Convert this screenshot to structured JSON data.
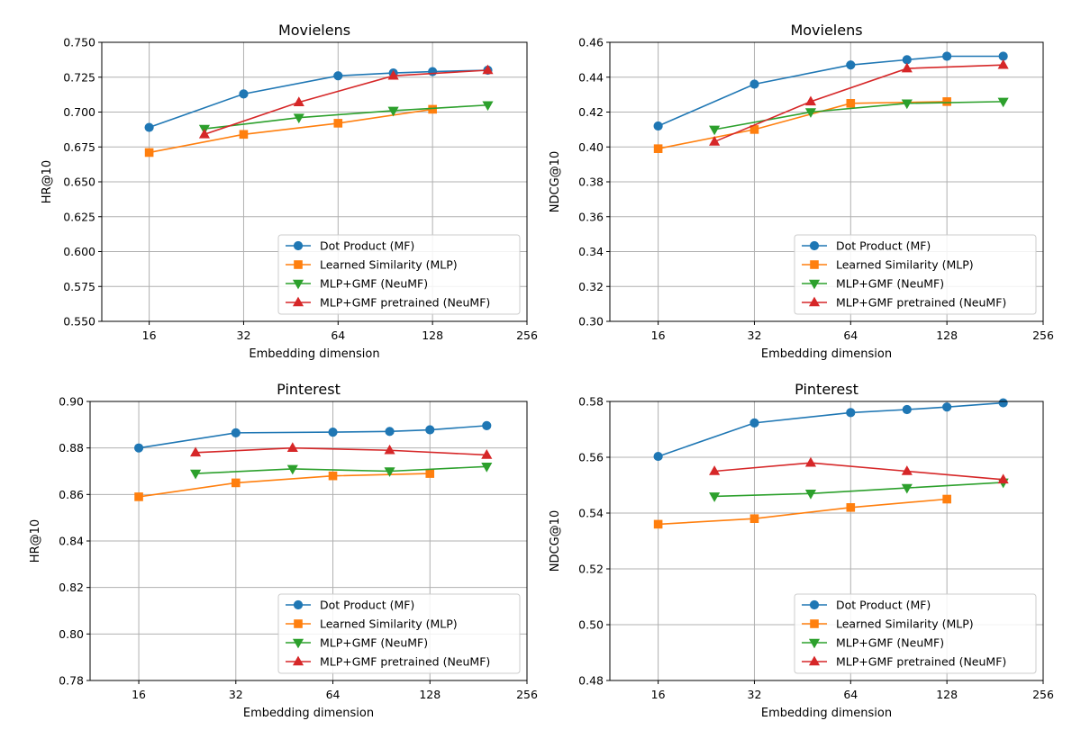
{
  "series_colors": [
    "#1f77b4",
    "#ff7f0e",
    "#2ca02c",
    "#d62728"
  ],
  "series_markers": [
    "circle",
    "square",
    "triangle-down",
    "triangle-up"
  ],
  "chart_data": [
    {
      "type": "line",
      "title": "Movielens",
      "xlabel": "Embedding dimension",
      "ylabel": "HR@10",
      "xscale": "log2",
      "xlim": [
        11.3,
        256
      ],
      "xticks": [
        16,
        32,
        64,
        128,
        256
      ],
      "xtick_labels": [
        "16",
        "32",
        "64",
        "128",
        "256"
      ],
      "ylim": [
        0.55,
        0.75
      ],
      "yticks": [
        0.55,
        0.575,
        0.6,
        0.625,
        0.65,
        0.675,
        0.7,
        0.725,
        0.75
      ],
      "ytick_labels": [
        "0.550",
        "0.575",
        "0.600",
        "0.625",
        "0.650",
        "0.675",
        "0.700",
        "0.725",
        "0.750"
      ],
      "grid": true,
      "legend_position": "lower-right",
      "series": [
        {
          "name": "Dot Product (MF)",
          "x": [
            16,
            32,
            64,
            96,
            128,
            192
          ],
          "y": [
            0.689,
            0.713,
            0.726,
            0.728,
            0.729,
            0.73
          ]
        },
        {
          "name": "Learned Similarity (MLP)",
          "x": [
            16,
            32,
            64,
            128
          ],
          "y": [
            0.671,
            0.684,
            0.692,
            0.702
          ]
        },
        {
          "name": "MLP+GMF (NeuMF)",
          "x": [
            24,
            48,
            96,
            192
          ],
          "y": [
            0.688,
            0.696,
            0.701,
            0.705
          ]
        },
        {
          "name": "MLP+GMF pretrained (NeuMF)",
          "x": [
            24,
            48,
            96,
            192
          ],
          "y": [
            0.684,
            0.707,
            0.726,
            0.73
          ]
        }
      ]
    },
    {
      "type": "line",
      "title": "Movielens",
      "xlabel": "Embedding dimension",
      "ylabel": "NDCG@10",
      "xscale": "log2",
      "xlim": [
        11.3,
        256
      ],
      "xticks": [
        16,
        32,
        64,
        128,
        256
      ],
      "xtick_labels": [
        "16",
        "32",
        "64",
        "128",
        "256"
      ],
      "ylim": [
        0.3,
        0.46
      ],
      "yticks": [
        0.3,
        0.32,
        0.34,
        0.36,
        0.38,
        0.4,
        0.42,
        0.44,
        0.46
      ],
      "ytick_labels": [
        "0.30",
        "0.32",
        "0.34",
        "0.36",
        "0.38",
        "0.40",
        "0.42",
        "0.44",
        "0.46"
      ],
      "grid": true,
      "legend_position": "lower-right",
      "series": [
        {
          "name": "Dot Product (MF)",
          "x": [
            16,
            32,
            64,
            96,
            128,
            192
          ],
          "y": [
            0.412,
            0.436,
            0.447,
            0.45,
            0.452,
            0.452
          ]
        },
        {
          "name": "Learned Similarity (MLP)",
          "x": [
            16,
            32,
            64,
            128
          ],
          "y": [
            0.399,
            0.41,
            0.425,
            0.426
          ]
        },
        {
          "name": "MLP+GMF (NeuMF)",
          "x": [
            24,
            48,
            96,
            192
          ],
          "y": [
            0.41,
            0.42,
            0.425,
            0.426
          ]
        },
        {
          "name": "MLP+GMF pretrained (NeuMF)",
          "x": [
            24,
            48,
            96,
            192
          ],
          "y": [
            0.403,
            0.426,
            0.445,
            0.447
          ]
        }
      ]
    },
    {
      "type": "line",
      "title": "Pinterest",
      "xlabel": "Embedding dimension",
      "ylabel": "HR@10",
      "xscale": "log2",
      "xlim": [
        11.3,
        256
      ],
      "xticks": [
        16,
        32,
        64,
        128,
        256
      ],
      "xtick_labels": [
        "16",
        "32",
        "64",
        "128",
        "256"
      ],
      "ylim": [
        0.78,
        0.9
      ],
      "yticks": [
        0.78,
        0.8,
        0.82,
        0.84,
        0.86,
        0.88,
        0.9
      ],
      "ytick_labels": [
        "0.78",
        "0.80",
        "0.82",
        "0.84",
        "0.86",
        "0.88",
        "0.90"
      ],
      "grid": true,
      "legend_position": "lower-right",
      "series": [
        {
          "name": "Dot Product (MF)",
          "x": [
            16,
            32,
            64,
            96,
            128,
            192
          ],
          "y": [
            0.88,
            0.8865,
            0.8868,
            0.8871,
            0.8878,
            0.8896
          ]
        },
        {
          "name": "Learned Similarity (MLP)",
          "x": [
            16,
            32,
            64,
            128
          ],
          "y": [
            0.859,
            0.865,
            0.868,
            0.869
          ]
        },
        {
          "name": "MLP+GMF (NeuMF)",
          "x": [
            24,
            48,
            96,
            192
          ],
          "y": [
            0.869,
            0.871,
            0.87,
            0.872
          ]
        },
        {
          "name": "MLP+GMF pretrained (NeuMF)",
          "x": [
            24,
            48,
            96,
            192
          ],
          "y": [
            0.878,
            0.88,
            0.879,
            0.877
          ]
        }
      ]
    },
    {
      "type": "line",
      "title": "Pinterest",
      "xlabel": "Embedding dimension",
      "ylabel": "NDCG@10",
      "xscale": "log2",
      "xlim": [
        11.3,
        256
      ],
      "xticks": [
        16,
        32,
        64,
        128,
        256
      ],
      "xtick_labels": [
        "16",
        "32",
        "64",
        "128",
        "256"
      ],
      "ylim": [
        0.48,
        0.58
      ],
      "yticks": [
        0.48,
        0.5,
        0.52,
        0.54,
        0.56,
        0.58
      ],
      "ytick_labels": [
        "0.48",
        "0.50",
        "0.52",
        "0.54",
        "0.56",
        "0.58"
      ],
      "grid": true,
      "legend_position": "lower-right",
      "series": [
        {
          "name": "Dot Product (MF)",
          "x": [
            16,
            32,
            64,
            96,
            128,
            192
          ],
          "y": [
            0.5603,
            0.5723,
            0.576,
            0.5771,
            0.578,
            0.5795
          ]
        },
        {
          "name": "Learned Similarity (MLP)",
          "x": [
            16,
            32,
            64,
            128
          ],
          "y": [
            0.536,
            0.538,
            0.542,
            0.545
          ]
        },
        {
          "name": "MLP+GMF (NeuMF)",
          "x": [
            24,
            48,
            96,
            192
          ],
          "y": [
            0.546,
            0.547,
            0.549,
            0.551
          ]
        },
        {
          "name": "MLP+GMF pretrained (NeuMF)",
          "x": [
            24,
            48,
            96,
            192
          ],
          "y": [
            0.555,
            0.558,
            0.555,
            0.552
          ]
        }
      ]
    }
  ]
}
